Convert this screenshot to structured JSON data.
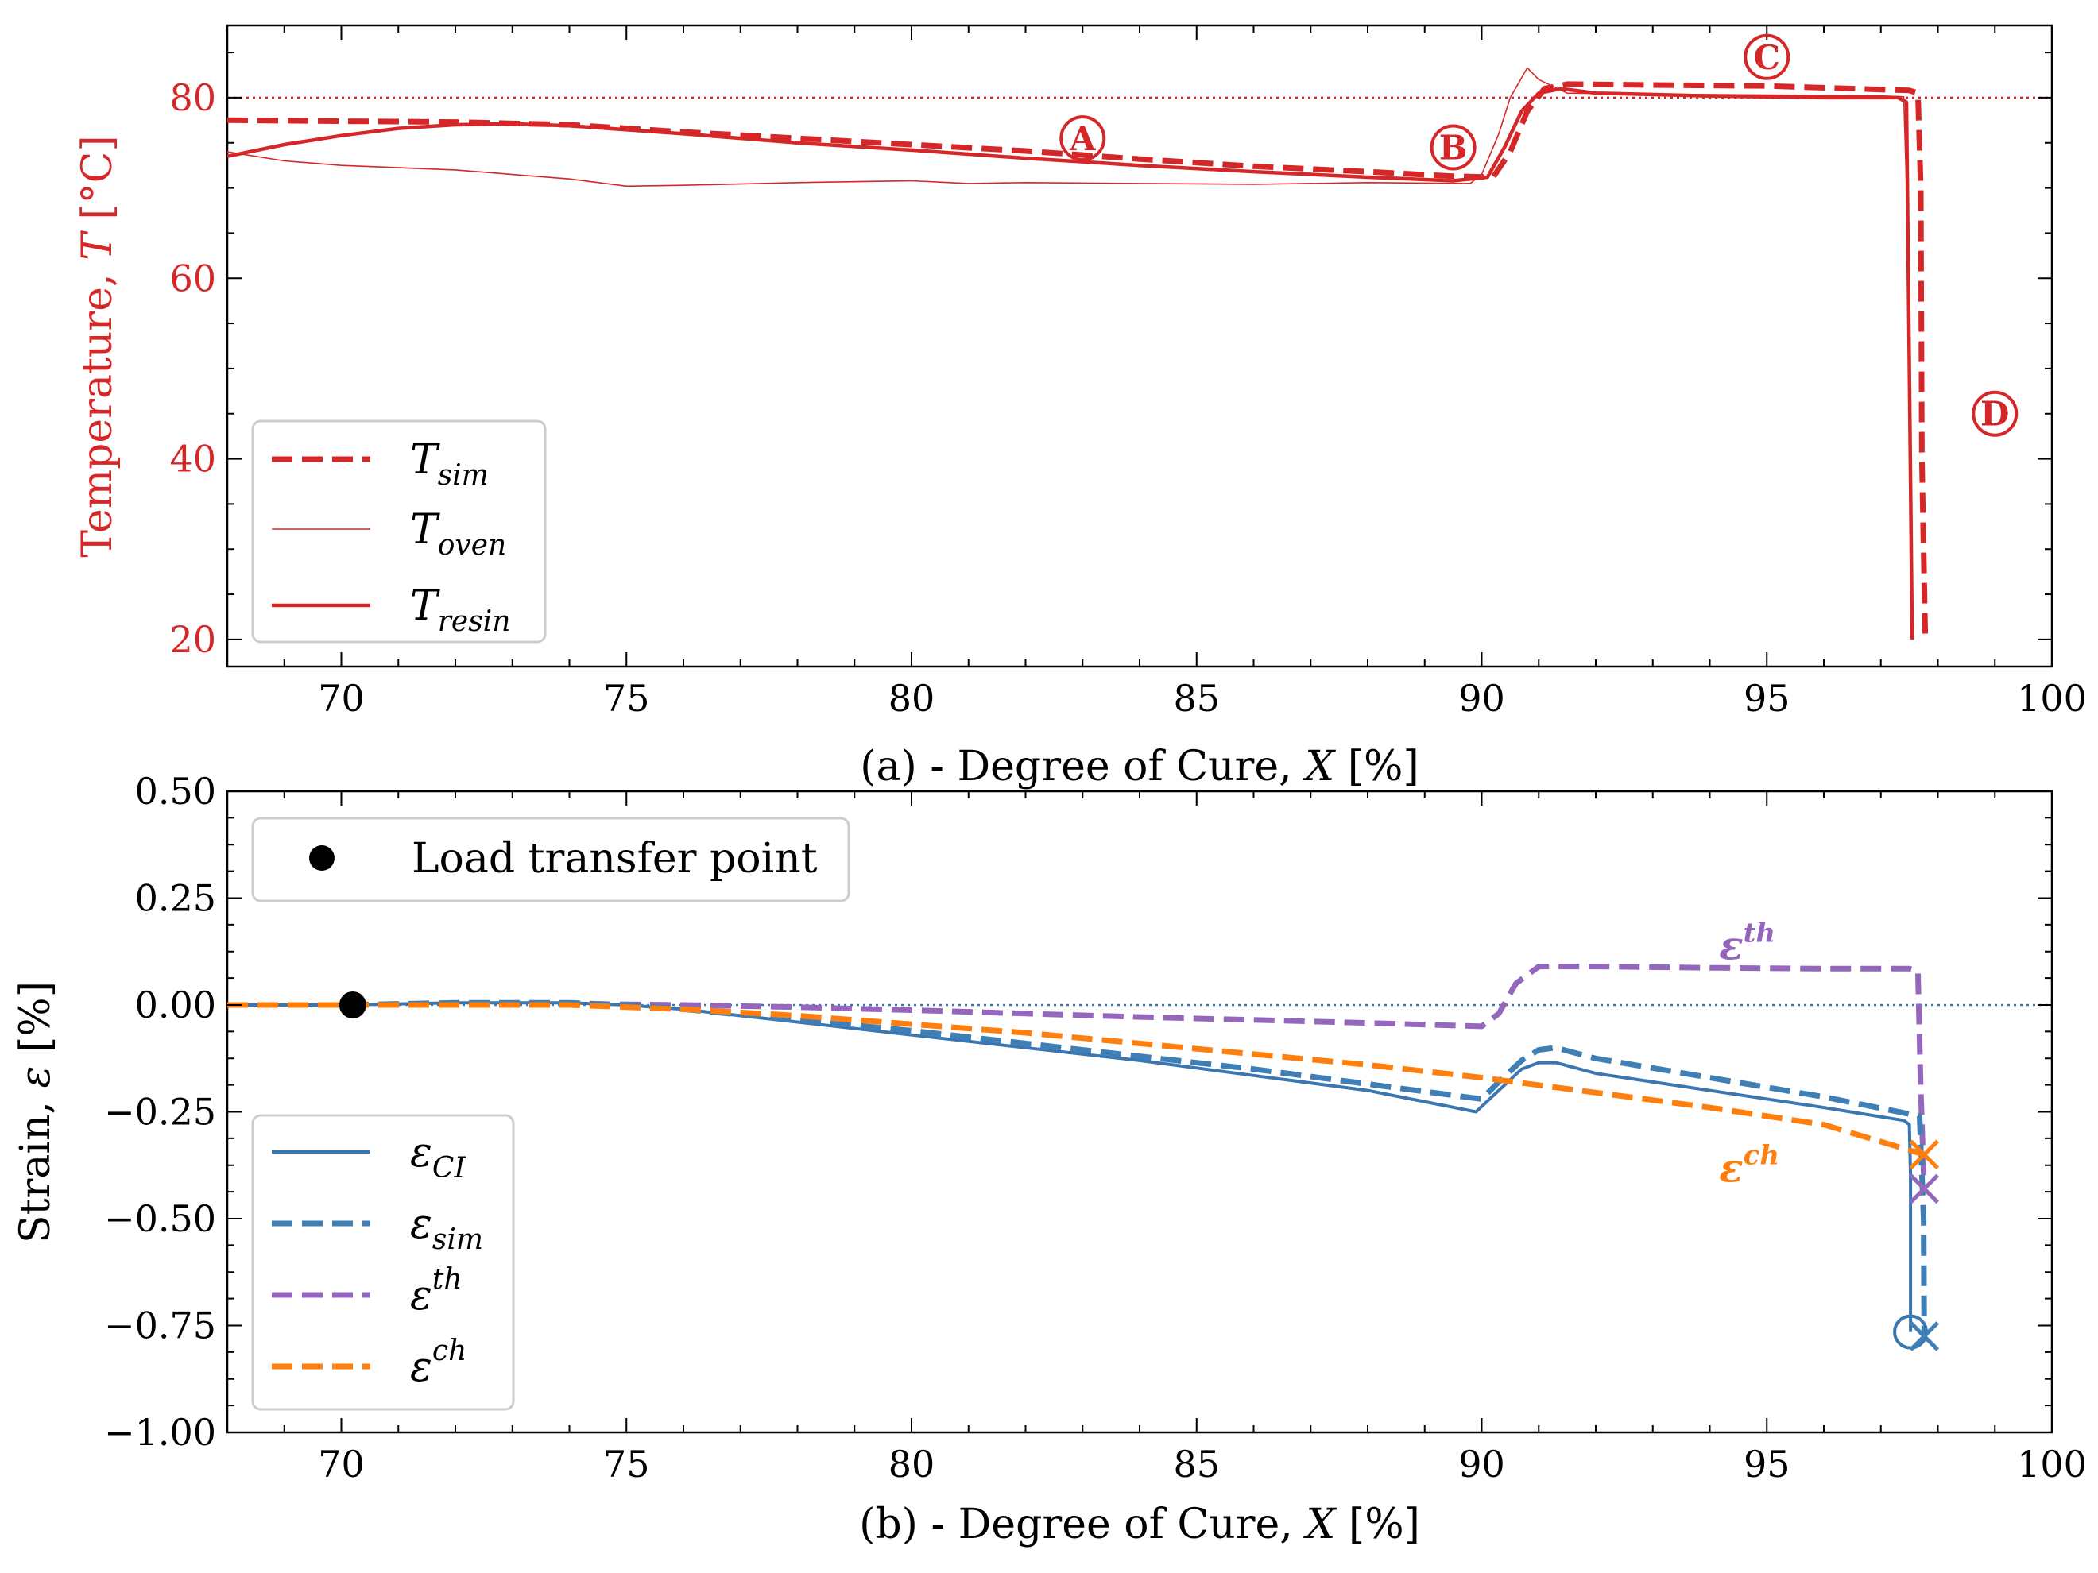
{
  "colors": {
    "temp_red": "#d62728",
    "ci_blue": "#3a76af",
    "sim_blue": "#3f7fb5",
    "th_purple": "#9467bd",
    "ch_orange": "#ff7f0e",
    "axis": "#000000"
  },
  "chart_data": [
    {
      "type": "line",
      "panel": "a",
      "xlabel": "(a) - Degree of Cure, X [%]",
      "ylabel": "Temperature, T [°C]",
      "xlim": [
        68,
        100
      ],
      "ylim": [
        17,
        88
      ],
      "xticks": [
        "70",
        "75",
        "80",
        "85",
        "90",
        "95",
        "100"
      ],
      "yticks": [
        "20",
        "40",
        "60",
        "80"
      ],
      "ytick_values": [
        20,
        40,
        60,
        80
      ],
      "reference_line": {
        "y": 80,
        "style": "dotted"
      },
      "annotations": [
        {
          "text": "A",
          "x": 83.0,
          "y": 75.5
        },
        {
          "text": "B",
          "x": 89.5,
          "y": 74.5
        },
        {
          "text": "C",
          "x": 95.0,
          "y": 84.5
        },
        {
          "text": "D",
          "x": 99.0,
          "y": 45.0
        }
      ],
      "legend": {
        "placement": "lower-left",
        "entries": [
          {
            "label": "T",
            "sub": "sim",
            "style": "dashed-thick"
          },
          {
            "label": "T",
            "sub": "oven",
            "style": "thin"
          },
          {
            "label": "T",
            "sub": "resin",
            "style": "solid"
          }
        ]
      },
      "series": [
        {
          "name": "T_sim",
          "x": [
            68.0,
            70,
            72,
            74,
            76,
            78,
            80,
            82,
            84,
            86,
            88,
            89.5,
            90.2,
            90.5,
            90.8,
            91.1,
            91.5,
            93,
            95,
            97,
            97.5,
            97.65,
            97.7,
            97.72,
            97.78
          ],
          "y": [
            77.5,
            77.4,
            77.3,
            77.0,
            76.2,
            75.5,
            74.8,
            74.1,
            73.2,
            72.4,
            71.8,
            71.3,
            71.2,
            74.0,
            78.5,
            81.0,
            81.5,
            81.4,
            81.3,
            80.9,
            80.8,
            80.5,
            70,
            40,
            20
          ]
        },
        {
          "name": "T_oven",
          "x": [
            68.0,
            69,
            70,
            72,
            74,
            75,
            76,
            78,
            80,
            81,
            82,
            84,
            86,
            88,
            89.8,
            90.0,
            90.3,
            90.5,
            90.8,
            91.0,
            91.5,
            93,
            95,
            97,
            97.4,
            97.5,
            97.55
          ],
          "y": [
            74.0,
            73.0,
            72.5,
            72.0,
            71.0,
            70.2,
            70.3,
            70.6,
            70.8,
            70.5,
            70.6,
            70.5,
            70.4,
            70.6,
            70.5,
            71.5,
            76.0,
            80.0,
            83.3,
            82.0,
            80.5,
            80.4,
            80.3,
            80.2,
            80.1,
            60,
            20
          ]
        },
        {
          "name": "T_resin",
          "x": [
            68.0,
            69,
            70,
            71,
            72,
            73,
            74,
            76,
            78,
            80,
            82,
            84,
            86,
            88,
            89.5,
            90.1,
            90.4,
            90.7,
            91.0,
            91.4,
            92,
            94,
            96,
            97.3,
            97.45,
            97.5,
            97.55
          ],
          "y": [
            73.5,
            74.8,
            75.8,
            76.6,
            77.0,
            77.1,
            76.9,
            76.0,
            75.0,
            74.2,
            73.3,
            72.5,
            71.8,
            71.2,
            70.8,
            71.2,
            74.5,
            78.5,
            80.5,
            81.0,
            80.5,
            80.2,
            80.0,
            80.0,
            79.5,
            50,
            20
          ]
        }
      ]
    },
    {
      "type": "line",
      "panel": "b",
      "xlabel": "(b) - Degree of Cure, X [%]",
      "ylabel": "Strain, ε [%]",
      "xlim": [
        68,
        100
      ],
      "ylim": [
        -1.0,
        0.5
      ],
      "xticks": [
        "70",
        "75",
        "80",
        "85",
        "90",
        "95",
        "100"
      ],
      "yticks": [
        "0.50",
        "0.25",
        "0.00",
        "−0.25",
        "−0.50",
        "−0.75",
        "−1.00"
      ],
      "ytick_values": [
        0.5,
        0.25,
        0.0,
        -0.25,
        -0.5,
        -0.75,
        -1.0
      ],
      "reference_line": {
        "y": 0.0,
        "style": "dotted"
      },
      "load_transfer_point": {
        "x": 70.2,
        "y": 0.0
      },
      "legend_top": {
        "placement": "upper-left",
        "entries": [
          {
            "label": "Load transfer point"
          }
        ]
      },
      "legend": {
        "placement": "lower-left",
        "entries": [
          {
            "label": "ε",
            "sub": "CI",
            "style": "solid"
          },
          {
            "label": "ε",
            "sub": "sim",
            "style": "dashed"
          },
          {
            "label": "ε",
            "sup": "th",
            "style": "dashed"
          },
          {
            "label": "ε",
            "sup": "ch",
            "style": "dashed"
          }
        ]
      },
      "curve_labels": [
        {
          "text": "ε",
          "sup": "th",
          "x": 95.0,
          "y": 0.14
        },
        {
          "text": "ε",
          "sup": "ch",
          "x": 95.0,
          "y": -0.38
        }
      ],
      "markers": [
        {
          "series": "ε_CI",
          "shape": "circle",
          "x": 97.52,
          "y": -0.765
        },
        {
          "series": "ε_sim",
          "shape": "x",
          "x": 97.76,
          "y": -0.775
        },
        {
          "series": "ε_th",
          "shape": "x",
          "x": 97.76,
          "y": -0.43
        },
        {
          "series": "ε_ch",
          "shape": "x",
          "x": 97.76,
          "y": -0.35
        }
      ],
      "series": [
        {
          "name": "ε_CI",
          "x": [
            68.0,
            70,
            72,
            74,
            75,
            76,
            78,
            80,
            82,
            84,
            86,
            88,
            89.9,
            90.3,
            90.7,
            91.0,
            91.3,
            92,
            94,
            96,
            97.4,
            97.5,
            97.52,
            97.52
          ],
          "y": [
            0.0,
            0.0,
            0.005,
            0.005,
            0.0,
            -0.01,
            -0.04,
            -0.07,
            -0.1,
            -0.13,
            -0.165,
            -0.2,
            -0.25,
            -0.2,
            -0.15,
            -0.135,
            -0.135,
            -0.16,
            -0.2,
            -0.24,
            -0.27,
            -0.28,
            -0.4,
            -0.765
          ]
        },
        {
          "name": "ε_sim",
          "x": [
            68.0,
            70,
            72,
            74,
            75,
            76,
            78,
            80,
            82,
            84,
            86,
            88,
            90.0,
            90.3,
            90.7,
            91.0,
            91.3,
            92,
            94,
            96,
            97.5,
            97.68,
            97.75,
            97.76
          ],
          "y": [
            0.0,
            0.0,
            0.005,
            0.005,
            0.0,
            -0.01,
            -0.035,
            -0.06,
            -0.09,
            -0.12,
            -0.15,
            -0.185,
            -0.22,
            -0.18,
            -0.13,
            -0.105,
            -0.1,
            -0.125,
            -0.17,
            -0.215,
            -0.255,
            -0.26,
            -0.5,
            -0.775
          ]
        },
        {
          "name": "ε_th",
          "x": [
            68.0,
            70,
            72,
            74,
            76,
            78,
            80,
            82,
            84,
            86,
            88,
            90.0,
            90.3,
            90.6,
            91.0,
            92,
            94,
            96,
            97.5,
            97.65,
            97.7,
            97.76
          ],
          "y": [
            0.0,
            0.0,
            0.003,
            0.003,
            0.0,
            -0.005,
            -0.012,
            -0.02,
            -0.028,
            -0.035,
            -0.042,
            -0.05,
            -0.02,
            0.05,
            0.09,
            0.09,
            0.087,
            0.085,
            0.085,
            0.08,
            -0.2,
            -0.43
          ]
        },
        {
          "name": "ε_ch",
          "x": [
            68.0,
            70,
            74,
            76,
            78,
            80,
            82,
            84,
            86,
            88,
            90,
            92,
            94,
            96,
            97.76
          ],
          "y": [
            0.0,
            0.0,
            0.0,
            -0.01,
            -0.025,
            -0.045,
            -0.065,
            -0.09,
            -0.115,
            -0.14,
            -0.17,
            -0.205,
            -0.24,
            -0.28,
            -0.35
          ]
        }
      ]
    }
  ]
}
